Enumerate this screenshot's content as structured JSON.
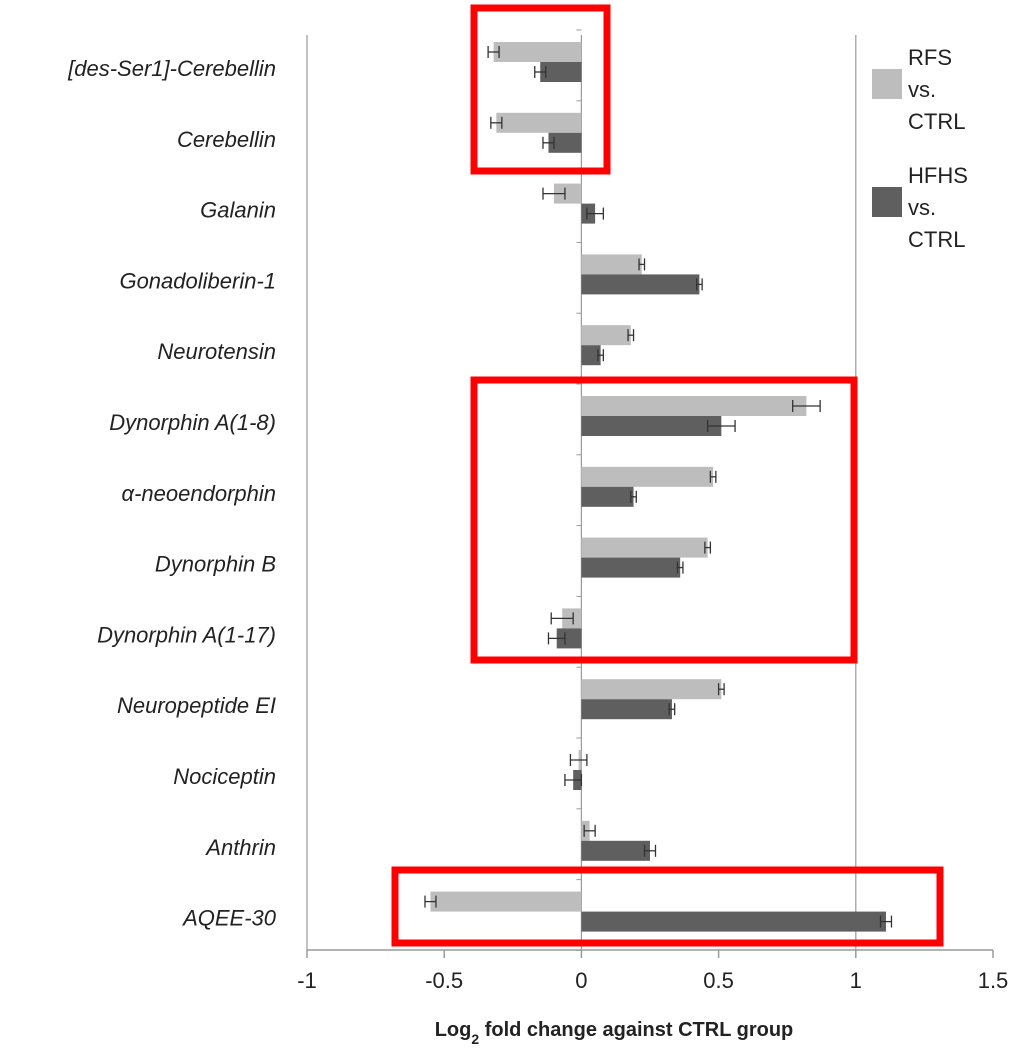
{
  "chart_data": {
    "type": "bar",
    "orientation": "horizontal",
    "categories": [
      "[des-Ser1]-Cerebellin",
      "Cerebellin",
      "Galanin",
      "Gonadoliberin-1",
      "Neurotensin",
      "Dynorphin A(1-8)",
      "α-neoendorphin",
      "Dynorphin B",
      "Dynorphin A(1-17)",
      "Neuropeptide EI",
      "Nociceptin",
      "Anthrin",
      "AQEE-30"
    ],
    "series": [
      {
        "name": "RFS vs. CTRL",
        "legend_lines": [
          "RFS",
          "vs.",
          "CTRL"
        ],
        "color": "#bdbdbd",
        "values": [
          -0.32,
          -0.31,
          -0.1,
          0.22,
          0.18,
          0.82,
          0.48,
          0.46,
          -0.07,
          0.51,
          -0.01,
          0.03,
          -0.55
        ],
        "errors": [
          0.02,
          0.02,
          0.04,
          0.01,
          0.01,
          0.05,
          0.01,
          0.01,
          0.04,
          0.01,
          0.03,
          0.02,
          0.02
        ]
      },
      {
        "name": "HFHS vs. CTRL",
        "legend_lines": [
          "HFHS",
          "vs.",
          "CTRL"
        ],
        "color": "#5f5f5f",
        "values": [
          -0.15,
          -0.12,
          0.05,
          0.43,
          0.07,
          0.51,
          0.19,
          0.36,
          -0.09,
          0.33,
          -0.03,
          0.25,
          1.11
        ],
        "errors": [
          0.02,
          0.02,
          0.03,
          0.01,
          0.01,
          0.05,
          0.01,
          0.01,
          0.03,
          0.01,
          0.03,
          0.02,
          0.02
        ]
      }
    ],
    "xlabel_main": "Log",
    "xlabel_sub": "2",
    "xlabel_rest": " fold change against CTRL group",
    "ylabel": "",
    "xlim": [
      -1,
      1.5
    ],
    "xticks": [
      -1,
      -0.5,
      0,
      0.5,
      1,
      1.5
    ],
    "xtick_labels": [
      "-1",
      "-0.5",
      "0",
      "0.5",
      "1",
      "1.5"
    ],
    "reference_lines": [
      0,
      1
    ],
    "legend_position": "top-right",
    "highlight_boxes": [
      {
        "color": "#ff0000",
        "categories": [
          "[des-Ser1]-Cerebellin",
          "Cerebellin"
        ]
      },
      {
        "color": "#ff0000",
        "categories": [
          "Dynorphin A(1-8)",
          "α-neoendorphin",
          "Dynorphin B",
          "Dynorphin A(1-17)"
        ]
      },
      {
        "color": "#ff0000",
        "categories": [
          "AQEE-30"
        ]
      }
    ]
  }
}
